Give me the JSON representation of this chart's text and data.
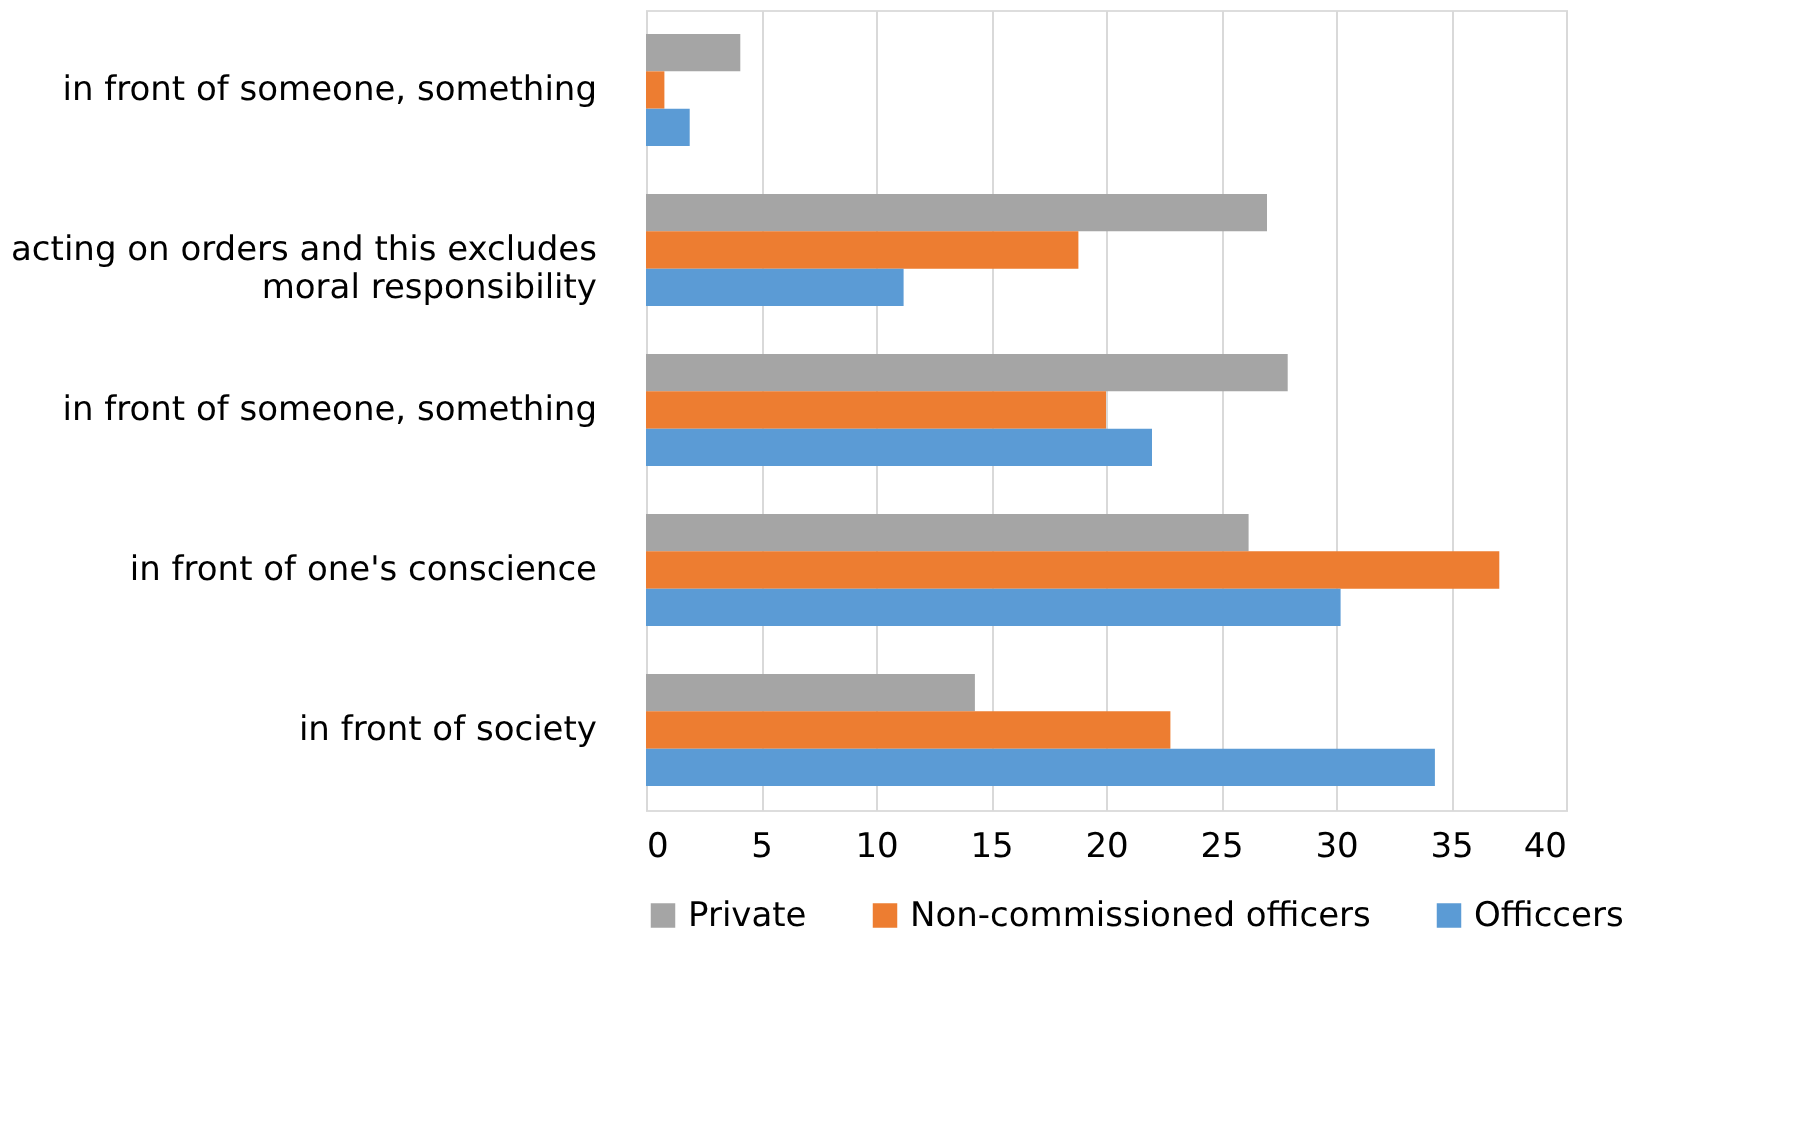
{
  "chart_data": {
    "type": "bar",
    "orientation": "horizontal",
    "categories": [
      "in front of someone, something",
      "acting on orders and this excludes moral responsibility",
      "in front of someone, something",
      "in front of one's conscience",
      "in front of society"
    ],
    "series": [
      {
        "name": "Private",
        "color": "#a5a5a5",
        "values": [
          4.1,
          27.0,
          27.9,
          26.2,
          14.3
        ]
      },
      {
        "name": "Non-commissioned officers",
        "color": "#ed7d31",
        "values": [
          0.8,
          18.8,
          20.0,
          37.1,
          22.8
        ]
      },
      {
        "name": "Officcers",
        "color": "#5b9bd5",
        "values": [
          1.9,
          11.2,
          22.0,
          30.2,
          34.3
        ]
      }
    ],
    "xlim": [
      0,
      40
    ],
    "xticks": [
      0,
      5,
      10,
      15,
      20,
      25,
      30,
      35,
      40
    ],
    "grid": "x",
    "legend": "bottom"
  }
}
